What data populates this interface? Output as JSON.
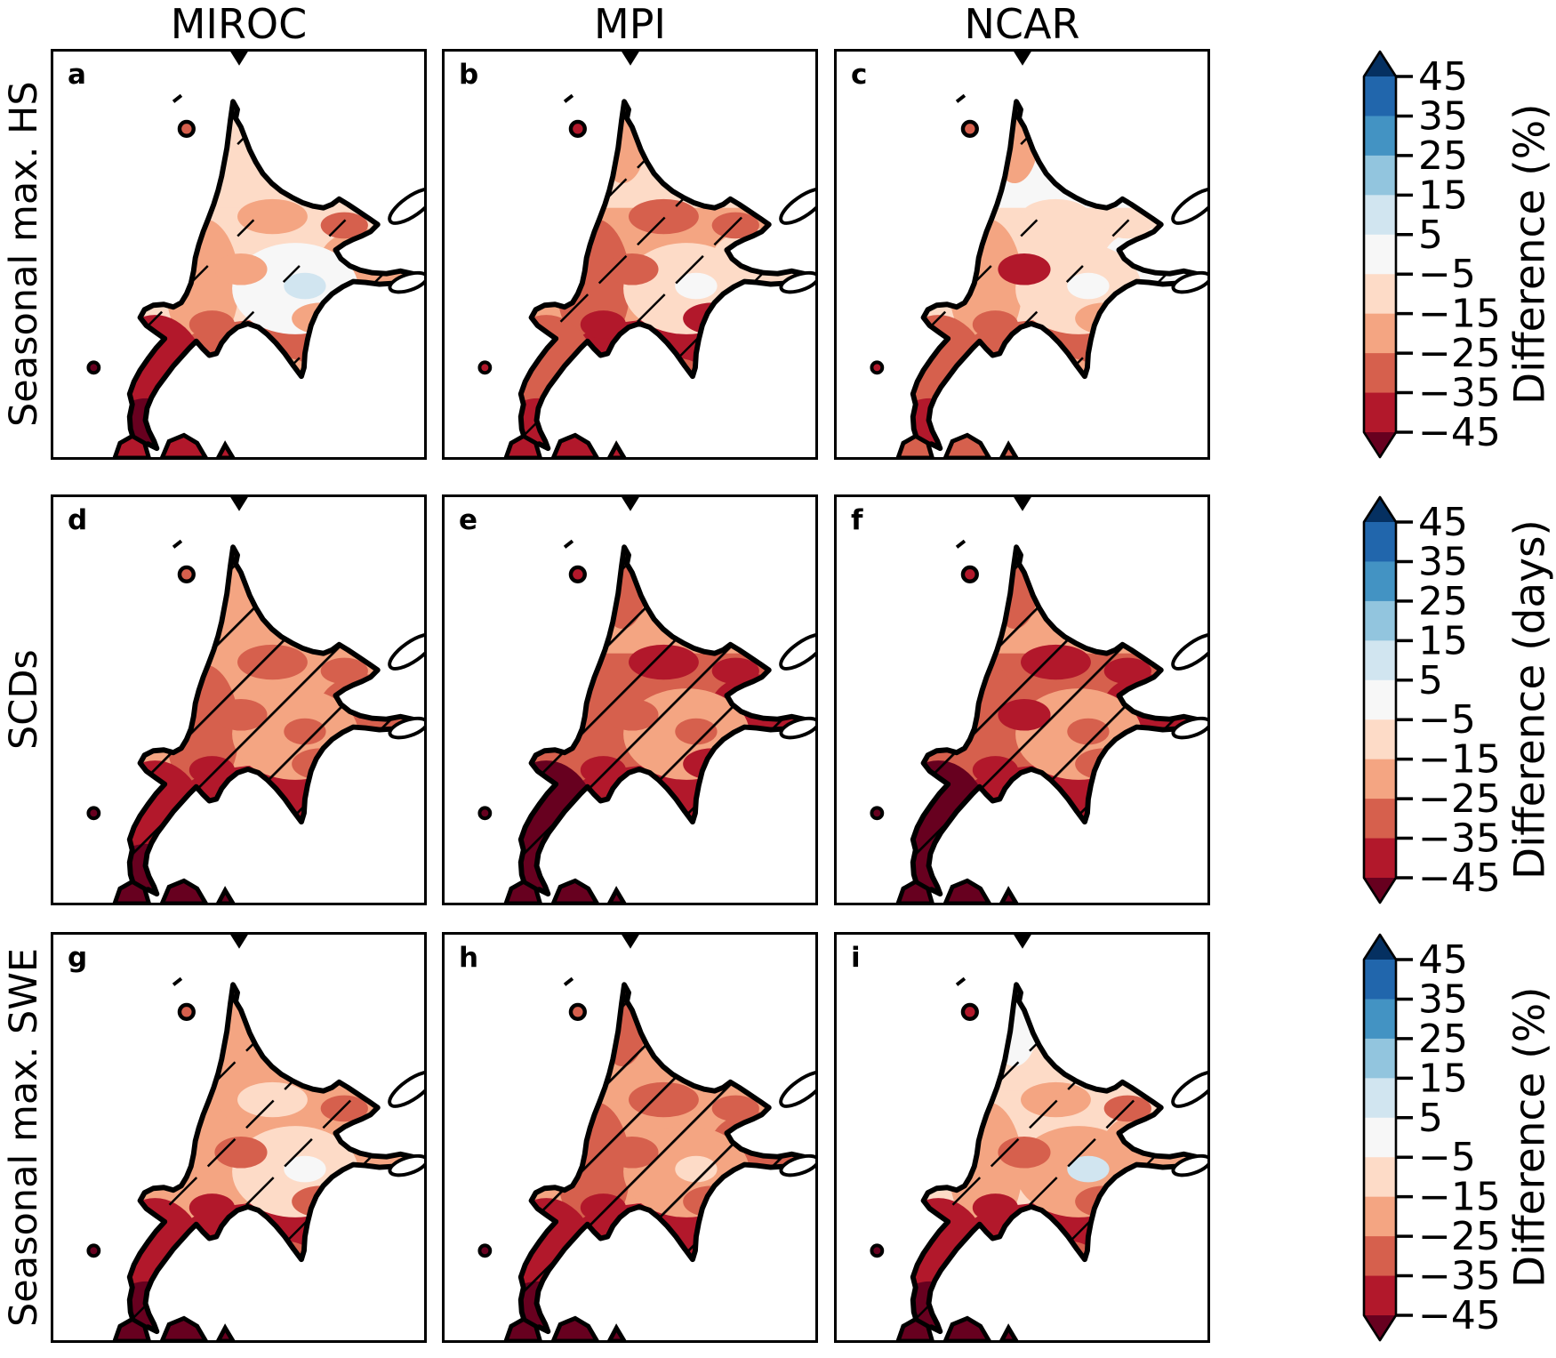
{
  "figure": {
    "columns": [
      "MIROC",
      "MPI",
      "NCAR"
    ],
    "row_labels": [
      "Seasonal max. HS",
      "SCDs",
      "Seasonal max. SWE"
    ]
  },
  "chart_data": {
    "type": "heatmap",
    "subtype": "choropleth-map-grid",
    "region": "Hokkaido, Japan",
    "columns": [
      "MIROC",
      "MPI",
      "NCAR"
    ],
    "rows": [
      {
        "label": "Seasonal max. HS",
        "colorbar_label": "Difference (%)",
        "units": "%"
      },
      {
        "label": "SCDs",
        "colorbar_label": "Difference (days)",
        "units": "days"
      },
      {
        "label": "Seasonal max. SWE",
        "colorbar_label": "Difference (%)",
        "units": "%"
      }
    ],
    "colorbar": {
      "ticks": [
        45,
        35,
        25,
        15,
        5,
        -5,
        -15,
        -25,
        -35,
        -45
      ],
      "tick_labels": [
        "45",
        "35",
        "25",
        "15",
        "5",
        "−5",
        "−15",
        "−25",
        "−35",
        "−45"
      ],
      "segment_colors_top_to_bottom": [
        "#2166ac",
        "#4393c3",
        "#92c5de",
        "#d1e5f0",
        "#f7f7f7",
        "#fddbc7",
        "#f4a582",
        "#d6604d",
        "#b2182b"
      ],
      "over_arrow_color": "#053061",
      "under_arrow_color": "#67001f"
    },
    "panels": [
      {
        "letter": "a",
        "model": "MIROC",
        "variable": "Seasonal max. HS",
        "units": "%",
        "hatch": "sparse",
        "approx_difference_range": "mostly −5 to −15, near 0 to +5 in east-central lowlands, −25 to −45 on southwest peninsula",
        "fills": {
          "base": "#fddbc7",
          "north": "#fddbc7",
          "north_tip": "#fddbc7",
          "west": "#f4a582",
          "east": "#f4a582",
          "south": "#d6604d",
          "center": "#f7f7f7",
          "spot": "#d1e5f0",
          "sw": "#b2182b",
          "sw_tip": "#67001f",
          "rishiri": "#d6604d",
          "honshu": "#b2182b",
          "patches": [
            "#f4a582",
            "#f4a582",
            "#f4a582",
            "#d6604d",
            "#d6604d",
            "#f4a582"
          ]
        }
      },
      {
        "letter": "b",
        "model": "MPI",
        "variable": "Seasonal max. HS",
        "units": "%",
        "hatch": "medium",
        "approx_difference_range": "mostly −15 to −25 with −25 to −35 patches, −35 to −45 along south coast",
        "fills": {
          "base": "#f4a582",
          "north": "#fddbc7",
          "north_tip": "#f4a582",
          "west": "#d6604d",
          "east": "#fddbc7",
          "south": "#b2182b",
          "center": "#fddbc7",
          "spot": "#f7f7f7",
          "sw": "#d6604d",
          "sw_tip": "#b2182b",
          "rishiri": "#b2182b",
          "honshu": "#b2182b",
          "patches": [
            "#d6604d",
            "#d6604d",
            "#b2182b",
            "#d6604d",
            "#b2182b",
            "#d6604d"
          ]
        }
      },
      {
        "letter": "c",
        "model": "NCAR",
        "variable": "Seasonal max. HS",
        "units": "%",
        "hatch": "sparse",
        "approx_difference_range": "mostly −5 to −15 with near-0 areas in the north and east, −25 to −45 in the west and southwest",
        "fills": {
          "base": "#fddbc7",
          "north": "#f7f7f7",
          "north_tip": "#f4a582",
          "west": "#f4a582",
          "east": "#f7f7f7",
          "south": "#d6604d",
          "center": "#fddbc7",
          "spot": "#f7f7f7",
          "sw": "#d6604d",
          "sw_tip": "#b2182b",
          "rishiri": "#d6604d",
          "honshu": "#d6604d",
          "patches": [
            "#fddbc7",
            "#b2182b",
            "#f4a582",
            "#fddbc7",
            "#d6604d",
            "#f4a582"
          ]
        }
      },
      {
        "letter": "d",
        "model": "MIROC",
        "variable": "SCDs",
        "units": "days",
        "hatch": "dense",
        "approx_difference_range": "mostly −15 to −25 days with −25 to −35 patches, below −35 days on south coast and southwest",
        "fills": {
          "base": "#f4a582",
          "north": "#f4a582",
          "north_tip": "#f4a582",
          "west": "#d6604d",
          "east": "#d6604d",
          "south": "#b2182b",
          "center": "#f4a582",
          "spot": "#d6604d",
          "sw": "#b2182b",
          "sw_tip": "#67001f",
          "rishiri": "#d6604d",
          "honshu": "#67001f",
          "patches": [
            "#d6604d",
            "#d6604d",
            "#d6604d",
            "#d6604d",
            "#b2182b",
            "#b2182b"
          ]
        }
      },
      {
        "letter": "e",
        "model": "MPI",
        "variable": "SCDs",
        "units": "days",
        "hatch": "dense",
        "approx_difference_range": "mostly −25 to −35 days, below −45 days in the southwest and along southeast coast",
        "fills": {
          "base": "#d6604d",
          "north": "#f4a582",
          "north_tip": "#d6604d",
          "west": "#d6604d",
          "east": "#b2182b",
          "south": "#b2182b",
          "center": "#f4a582",
          "spot": "#d6604d",
          "sw": "#67001f",
          "sw_tip": "#67001f",
          "rishiri": "#b2182b",
          "honshu": "#67001f",
          "patches": [
            "#b2182b",
            "#d6604d",
            "#b2182b",
            "#b2182b",
            "#b2182b",
            "#b2182b"
          ]
        }
      },
      {
        "letter": "f",
        "model": "NCAR",
        "variable": "SCDs",
        "units": "days",
        "hatch": "dense",
        "approx_difference_range": "mostly −15 to −35 days, below −45 days in the east and southwest",
        "fills": {
          "base": "#d6604d",
          "north": "#f4a582",
          "north_tip": "#d6604d",
          "west": "#d6604d",
          "east": "#b2182b",
          "south": "#b2182b",
          "center": "#f4a582",
          "spot": "#d6604d",
          "sw": "#67001f",
          "sw_tip": "#67001f",
          "rishiri": "#b2182b",
          "honshu": "#67001f",
          "patches": [
            "#b2182b",
            "#b2182b",
            "#d6604d",
            "#b2182b",
            "#b2182b",
            "#b2182b"
          ]
        }
      },
      {
        "letter": "g",
        "model": "MIROC",
        "variable": "Seasonal max. SWE",
        "units": "%",
        "hatch": "medium",
        "approx_difference_range": "mostly −15 to −25 with −5 to −15 center, −35 to −45 along the south and southwest",
        "fills": {
          "base": "#f4a582",
          "north": "#f4a582",
          "north_tip": "#f4a582",
          "west": "#f4a582",
          "east": "#f4a582",
          "south": "#b2182b",
          "center": "#fddbc7",
          "spot": "#f7f7f7",
          "sw": "#b2182b",
          "sw_tip": "#67001f",
          "rishiri": "#d6604d",
          "honshu": "#67001f",
          "patches": [
            "#fddbc7",
            "#d6604d",
            "#d6604d",
            "#d6604d",
            "#b2182b",
            "#d6604d"
          ]
        }
      },
      {
        "letter": "h",
        "model": "MPI",
        "variable": "Seasonal max. SWE",
        "units": "%",
        "hatch": "dense",
        "approx_difference_range": "mostly −15 to −25 with −25 to −35 patches, below −45 in the southwest",
        "fills": {
          "base": "#f4a582",
          "north": "#f4a582",
          "north_tip": "#d6604d",
          "west": "#d6604d",
          "east": "#d6604d",
          "south": "#b2182b",
          "center": "#f4a582",
          "spot": "#fddbc7",
          "sw": "#b2182b",
          "sw_tip": "#67001f",
          "rishiri": "#d6604d",
          "honshu": "#67001f",
          "patches": [
            "#d6604d",
            "#d6604d",
            "#d6604d",
            "#d6604d",
            "#b2182b",
            "#b2182b"
          ]
        }
      },
      {
        "letter": "i",
        "model": "NCAR",
        "variable": "Seasonal max. SWE",
        "units": "%",
        "hatch": "medium",
        "approx_difference_range": "mostly −5 to −15 in the north, −15 to −35 in the south, below −45 in the southwest",
        "fills": {
          "base": "#fddbc7",
          "north": "#fddbc7",
          "north_tip": "#f7f7f7",
          "west": "#f4a582",
          "east": "#f4a582",
          "south": "#b2182b",
          "center": "#f4a582",
          "spot": "#d1e5f0",
          "sw": "#b2182b",
          "sw_tip": "#67001f",
          "rishiri": "#b2182b",
          "honshu": "#67001f",
          "patches": [
            "#f4a582",
            "#d6604d",
            "#d6604d",
            "#d6604d",
            "#b2182b",
            "#d6604d"
          ]
        }
      }
    ]
  }
}
